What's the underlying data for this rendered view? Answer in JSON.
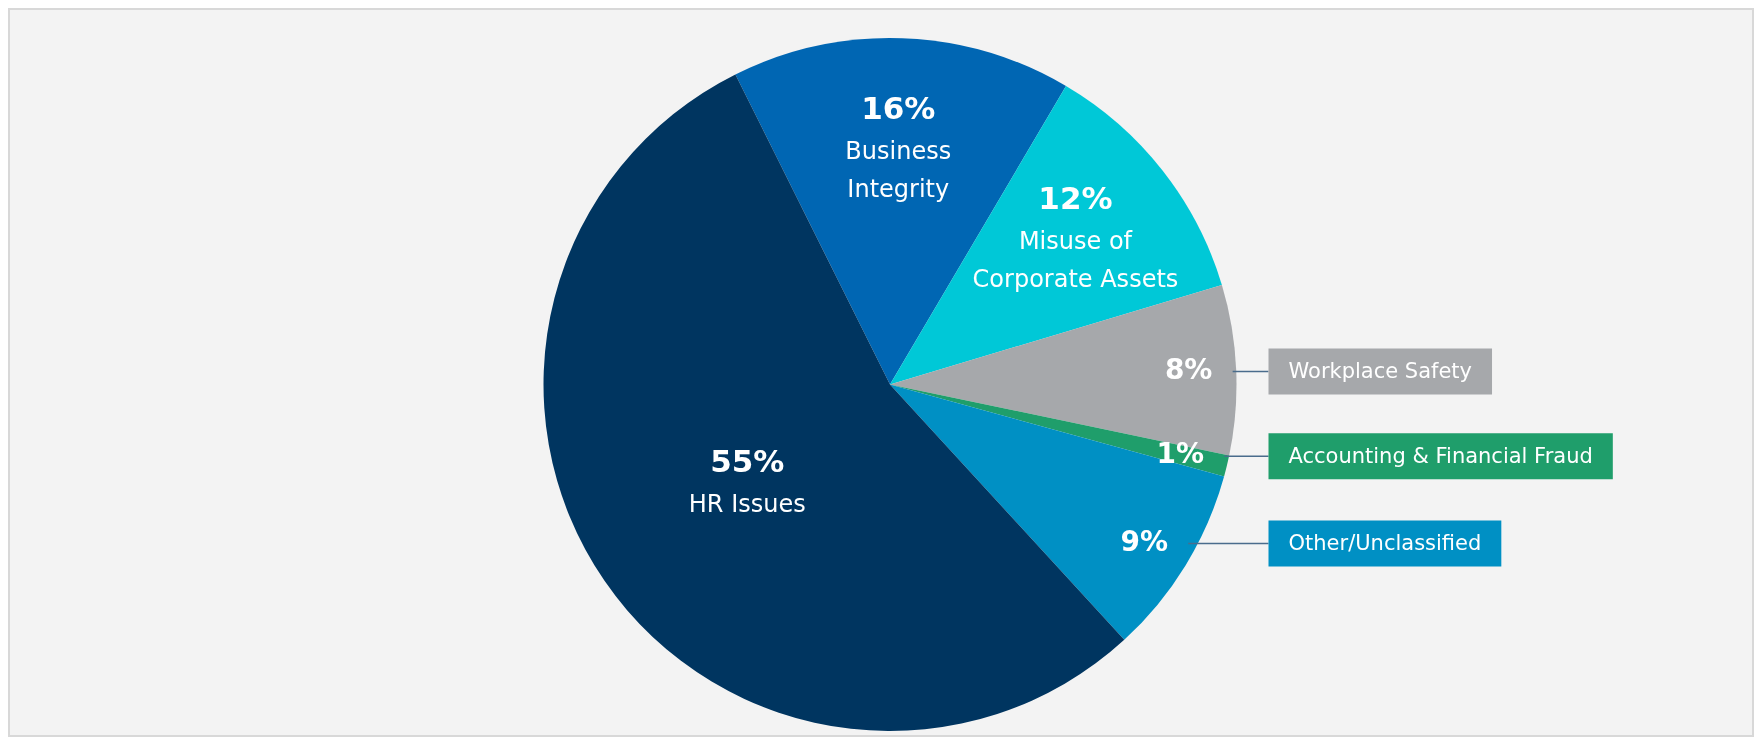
{
  "chart_data": {
    "type": "pie",
    "categories": [
      "Business Integrity",
      "Misuse of Corporate Assets",
      "Workplace Safety",
      "Accounting & Financial Fraud",
      "Other/Unclassified",
      "HR Issues"
    ],
    "values": [
      16,
      12,
      8,
      1,
      9,
      55
    ],
    "colors": [
      "#0066b3",
      "#00c8d7",
      "#a6a8ab",
      "#1f9e6b",
      "#0090c4",
      "#003560"
    ],
    "value_labels": [
      "16%",
      "12%",
      "8%",
      "1%",
      "9%",
      "55%"
    ],
    "legend": false
  }
}
